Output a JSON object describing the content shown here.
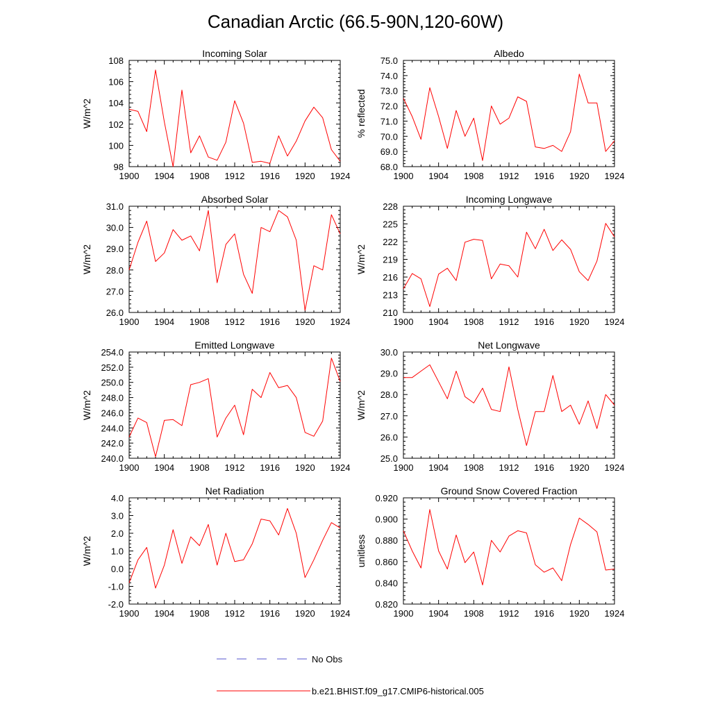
{
  "title": "Canadian Arctic (66.5-90N,120-60W)",
  "legend": {
    "items": [
      {
        "label": "No Obs",
        "color": "#5555cc",
        "style": "dashed"
      },
      {
        "label": "b.e21.BHIST.f09_g17.CMIP6-historical.005",
        "color": "#ff0000",
        "style": "solid"
      }
    ]
  },
  "chart_data": [
    {
      "type": "line",
      "title": "Incoming Solar",
      "xlabel": "",
      "ylabel": "W/m^2",
      "xlim": [
        1900,
        1924
      ],
      "ylim": [
        98,
        108
      ],
      "xticks": [
        "1900",
        "1904",
        "1908",
        "1912",
        "1916",
        "1920",
        "1924"
      ],
      "yticks": [
        "98",
        "100",
        "102",
        "104",
        "106",
        "108"
      ],
      "x": [
        1900,
        1901,
        1902,
        1903,
        1904,
        1905,
        1906,
        1907,
        1908,
        1909,
        1910,
        1911,
        1912,
        1913,
        1914,
        1915,
        1916,
        1917,
        1918,
        1919,
        1920,
        1921,
        1922,
        1923,
        1924
      ],
      "series": [
        {
          "values": [
            103.4,
            103.2,
            101.3,
            107.1,
            102.2,
            98.0,
            105.2,
            99.3,
            100.9,
            98.9,
            98.6,
            100.3,
            104.2,
            102.1,
            98.4,
            98.5,
            98.3,
            100.9,
            99.0,
            100.4,
            102.3,
            103.6,
            102.6,
            99.6,
            98.5
          ],
          "color": "#ff0000"
        }
      ]
    },
    {
      "type": "line",
      "title": "Albedo",
      "xlabel": "",
      "ylabel": "% reflected",
      "xlim": [
        1900,
        1924
      ],
      "ylim": [
        68.0,
        75.0
      ],
      "xticks": [
        "1900",
        "1904",
        "1908",
        "1912",
        "1916",
        "1920",
        "1924"
      ],
      "yticks": [
        "68.0",
        "69.0",
        "70.0",
        "71.0",
        "72.0",
        "73.0",
        "74.0",
        "75.0"
      ],
      "x": [
        1900,
        1901,
        1902,
        1903,
        1904,
        1905,
        1906,
        1907,
        1908,
        1909,
        1910,
        1911,
        1912,
        1913,
        1914,
        1915,
        1916,
        1917,
        1918,
        1919,
        1920,
        1921,
        1922,
        1923,
        1924
      ],
      "series": [
        {
          "values": [
            72.5,
            71.3,
            69.8,
            73.2,
            71.3,
            69.2,
            71.7,
            70.0,
            71.2,
            68.4,
            72.0,
            70.8,
            71.2,
            72.6,
            72.3,
            69.3,
            69.2,
            69.4,
            69.0,
            70.3,
            74.1,
            72.2,
            72.2,
            69.0,
            69.7
          ],
          "color": "#ff0000"
        }
      ]
    },
    {
      "type": "line",
      "title": "Absorbed Solar",
      "xlabel": "",
      "ylabel": "W/m^2",
      "xlim": [
        1900,
        1924
      ],
      "ylim": [
        26.0,
        31.0
      ],
      "xticks": [
        "1900",
        "1904",
        "1908",
        "1912",
        "1916",
        "1920",
        "1924"
      ],
      "yticks": [
        "26.0",
        "27.0",
        "28.0",
        "29.0",
        "30.0",
        "31.0"
      ],
      "x": [
        1900,
        1901,
        1902,
        1903,
        1904,
        1905,
        1906,
        1907,
        1908,
        1909,
        1910,
        1911,
        1912,
        1913,
        1914,
        1915,
        1916,
        1917,
        1918,
        1919,
        1920,
        1921,
        1922,
        1923,
        1924
      ],
      "series": [
        {
          "values": [
            28.0,
            29.3,
            30.3,
            28.4,
            28.8,
            29.9,
            29.4,
            29.6,
            28.9,
            30.8,
            27.4,
            29.2,
            29.7,
            27.8,
            26.9,
            30.0,
            29.8,
            30.8,
            30.5,
            29.4,
            26.1,
            28.2,
            28.0,
            30.6,
            29.7
          ],
          "color": "#ff0000"
        }
      ]
    },
    {
      "type": "line",
      "title": "Incoming Longwave",
      "xlabel": "",
      "ylabel": "W/m^2",
      "xlim": [
        1900,
        1924
      ],
      "ylim": [
        210,
        228
      ],
      "xticks": [
        "1900",
        "1904",
        "1908",
        "1912",
        "1916",
        "1920",
        "1924"
      ],
      "yticks": [
        "210",
        "213",
        "216",
        "219",
        "222",
        "225",
        "228"
      ],
      "x": [
        1900,
        1901,
        1902,
        1903,
        1904,
        1905,
        1906,
        1907,
        1908,
        1909,
        1910,
        1911,
        1912,
        1913,
        1914,
        1915,
        1916,
        1917,
        1918,
        1919,
        1920,
        1921,
        1922,
        1923,
        1924
      ],
      "series": [
        {
          "values": [
            214.0,
            216.6,
            215.7,
            211.0,
            216.5,
            217.5,
            215.4,
            221.9,
            222.4,
            222.2,
            215.7,
            218.2,
            217.9,
            216.0,
            223.6,
            220.8,
            224.1,
            220.5,
            222.3,
            220.7,
            216.9,
            215.4,
            218.7,
            225.1,
            222.8
          ],
          "color": "#ff0000"
        }
      ]
    },
    {
      "type": "line",
      "title": "Emitted Longwave",
      "xlabel": "",
      "ylabel": "W/m^2",
      "xlim": [
        1900,
        1924
      ],
      "ylim": [
        240.0,
        254.0
      ],
      "xticks": [
        "1900",
        "1904",
        "1908",
        "1912",
        "1916",
        "1920",
        "1924"
      ],
      "yticks": [
        "240.0",
        "242.0",
        "244.0",
        "246.0",
        "248.0",
        "250.0",
        "252.0",
        "254.0"
      ],
      "x": [
        1900,
        1901,
        1902,
        1903,
        1904,
        1905,
        1906,
        1907,
        1908,
        1909,
        1910,
        1911,
        1912,
        1913,
        1914,
        1915,
        1916,
        1917,
        1918,
        1919,
        1920,
        1921,
        1922,
        1923,
        1924
      ],
      "series": [
        {
          "values": [
            242.8,
            245.3,
            244.7,
            240.2,
            245.0,
            245.1,
            244.3,
            249.7,
            250.0,
            250.5,
            242.8,
            245.3,
            247.0,
            243.1,
            249.1,
            248.0,
            251.3,
            249.3,
            249.6,
            248.0,
            243.4,
            242.9,
            244.9,
            253.2,
            250.1
          ],
          "color": "#ff0000"
        }
      ]
    },
    {
      "type": "line",
      "title": "Net Longwave",
      "xlabel": "",
      "ylabel": "W/m^2",
      "xlim": [
        1900,
        1924
      ],
      "ylim": [
        25.0,
        30.0
      ],
      "xticks": [
        "1900",
        "1904",
        "1908",
        "1912",
        "1916",
        "1920",
        "1924"
      ],
      "yticks": [
        "25.0",
        "26.0",
        "27.0",
        "28.0",
        "29.0",
        "30.0"
      ],
      "x": [
        1900,
        1901,
        1902,
        1903,
        1904,
        1905,
        1906,
        1907,
        1908,
        1909,
        1910,
        1911,
        1912,
        1913,
        1914,
        1915,
        1916,
        1917,
        1918,
        1919,
        1920,
        1921,
        1922,
        1923,
        1924
      ],
      "series": [
        {
          "values": [
            28.8,
            28.8,
            29.1,
            29.4,
            28.6,
            27.8,
            29.1,
            27.9,
            27.6,
            28.3,
            27.3,
            27.2,
            29.3,
            27.3,
            25.6,
            27.2,
            27.2,
            28.9,
            27.2,
            27.5,
            26.6,
            27.7,
            26.4,
            28.0,
            27.5
          ],
          "color": "#ff0000"
        }
      ]
    },
    {
      "type": "line",
      "title": "Net Radiation",
      "xlabel": "",
      "ylabel": "W/m^2",
      "xlim": [
        1900,
        1924
      ],
      "ylim": [
        -2.0,
        4.0
      ],
      "xticks": [
        "1900",
        "1904",
        "1908",
        "1912",
        "1916",
        "1920",
        "1924"
      ],
      "yticks": [
        "-2.0",
        "-1.0",
        "0.0",
        "1.0",
        "2.0",
        "3.0",
        "4.0"
      ],
      "x": [
        1900,
        1901,
        1902,
        1903,
        1904,
        1905,
        1906,
        1907,
        1908,
        1909,
        1910,
        1911,
        1912,
        1913,
        1914,
        1915,
        1916,
        1917,
        1918,
        1919,
        1920,
        1921,
        1922,
        1923,
        1924
      ],
      "series": [
        {
          "values": [
            -0.8,
            0.5,
            1.2,
            -1.1,
            0.2,
            2.2,
            0.3,
            1.8,
            1.3,
            2.5,
            0.2,
            2.0,
            0.4,
            0.5,
            1.4,
            2.8,
            2.7,
            1.9,
            3.4,
            2.0,
            -0.5,
            0.5,
            1.6,
            2.6,
            2.3
          ],
          "color": "#ff0000"
        }
      ]
    },
    {
      "type": "line",
      "title": "Ground Snow Covered Fraction",
      "xlabel": "",
      "ylabel": "unitless",
      "xlim": [
        1900,
        1924
      ],
      "ylim": [
        0.82,
        0.92
      ],
      "xticks": [
        "1900",
        "1904",
        "1908",
        "1912",
        "1916",
        "1920",
        "1924"
      ],
      "yticks": [
        "0.820",
        "0.840",
        "0.860",
        "0.880",
        "0.900",
        "0.920"
      ],
      "x": [
        1900,
        1901,
        1902,
        1903,
        1904,
        1905,
        1906,
        1907,
        1908,
        1909,
        1910,
        1911,
        1912,
        1913,
        1914,
        1915,
        1916,
        1917,
        1918,
        1919,
        1920,
        1921,
        1922,
        1923,
        1924
      ],
      "series": [
        {
          "values": [
            0.889,
            0.87,
            0.854,
            0.909,
            0.87,
            0.853,
            0.885,
            0.859,
            0.869,
            0.838,
            0.88,
            0.869,
            0.884,
            0.889,
            0.887,
            0.857,
            0.85,
            0.854,
            0.842,
            0.876,
            0.901,
            0.895,
            0.888,
            0.852,
            0.853
          ],
          "color": "#ff0000"
        }
      ]
    }
  ]
}
